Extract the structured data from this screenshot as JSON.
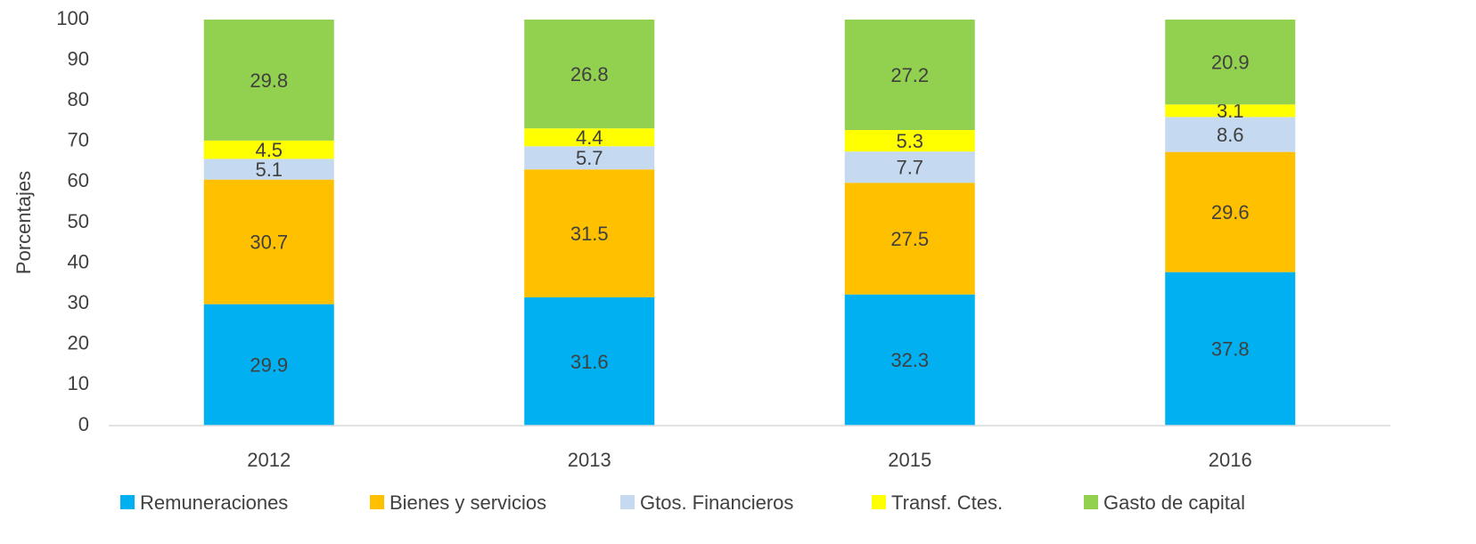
{
  "chart_data": {
    "type": "stacked_bar",
    "y_label": "Porcentajes",
    "categories": [
      "2012",
      "2013",
      "2015",
      "2016"
    ],
    "series": [
      {
        "name": "Remuneraciones",
        "color": "#00b0f0",
        "values": [
          29.9,
          31.6,
          32.3,
          37.8
        ]
      },
      {
        "name": "Bienes y servicios",
        "color": "#ffc000",
        "values": [
          30.7,
          31.5,
          27.5,
          29.6
        ]
      },
      {
        "name": "Gtos. Financieros",
        "color": "#c5d9f1",
        "values": [
          5.1,
          5.7,
          7.7,
          8.6
        ]
      },
      {
        "name": "Transf. Ctes.",
        "color": "#ffff00",
        "values": [
          4.5,
          4.4,
          5.3,
          3.1
        ]
      },
      {
        "name": "Gasto de capital",
        "color": "#92d050",
        "values": [
          29.8,
          26.8,
          27.2,
          20.9
        ]
      }
    ],
    "ylim": [
      0,
      100
    ],
    "yticks": [
      0,
      10,
      20,
      30,
      40,
      50,
      60,
      70,
      80,
      90,
      100
    ],
    "grid": false,
    "legend": "bottom",
    "data_labels": true
  }
}
